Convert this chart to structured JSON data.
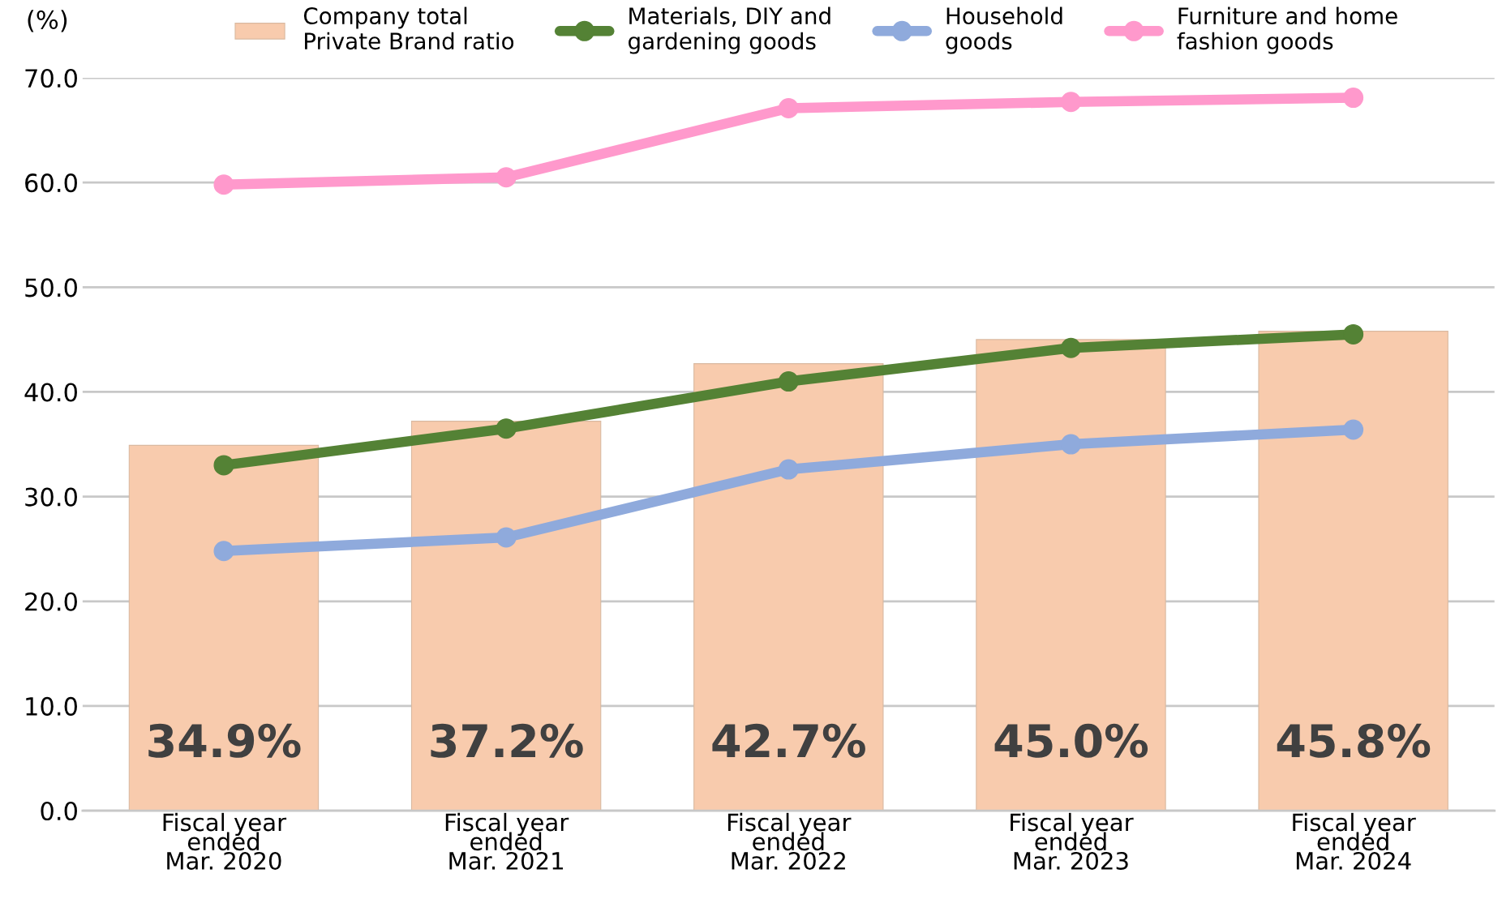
{
  "chart_data": {
    "type": "bar",
    "ylabel": "(%)",
    "categories": [
      "Fiscal year\nended\nMar. 2020",
      "Fiscal year\nended\nMar. 2021",
      "Fiscal year\nended\nMar. 2022",
      "Fiscal year\nended\nMar. 2023",
      "Fiscal year\nended\nMar. 2024"
    ],
    "series": [
      {
        "name": "Company total\nPrivate Brand ratio",
        "color": "#f8cbad",
        "values": [
          34.9,
          37.2,
          42.7,
          45.0,
          45.8
        ],
        "value_labels": [
          "34.9%",
          "37.2%",
          "42.7%",
          "45.0%",
          "45.8%"
        ]
      },
      {
        "name": "Materials, DIY and\ngardening goods",
        "type": "line",
        "color": "#548235",
        "values": [
          33.0,
          36.5,
          41.0,
          44.2,
          45.5
        ]
      },
      {
        "name": "Household\ngoods",
        "type": "line",
        "color": "#8faadc",
        "values": [
          24.8,
          26.1,
          32.6,
          35.0,
          36.4
        ]
      },
      {
        "name": "Furniture and home\nfashion goods",
        "type": "line",
        "color": "#ff99cc",
        "values": [
          59.8,
          60.5,
          67.1,
          67.7,
          68.1
        ]
      }
    ],
    "ylim": [
      0,
      70
    ],
    "yticks": [
      {
        "value": 0,
        "label": "0.0"
      },
      {
        "value": 10,
        "label": "10.0"
      },
      {
        "value": 20,
        "label": "20.0"
      },
      {
        "value": 30,
        "label": "30.0"
      },
      {
        "value": 40,
        "label": "40.0"
      },
      {
        "value": 50,
        "label": "50.0"
      },
      {
        "value": 60,
        "label": "60.0"
      },
      {
        "value": 70,
        "label": "70.0"
      }
    ],
    "grid": "y",
    "legend": "top",
    "marker": "circle",
    "line_style": "solid"
  }
}
